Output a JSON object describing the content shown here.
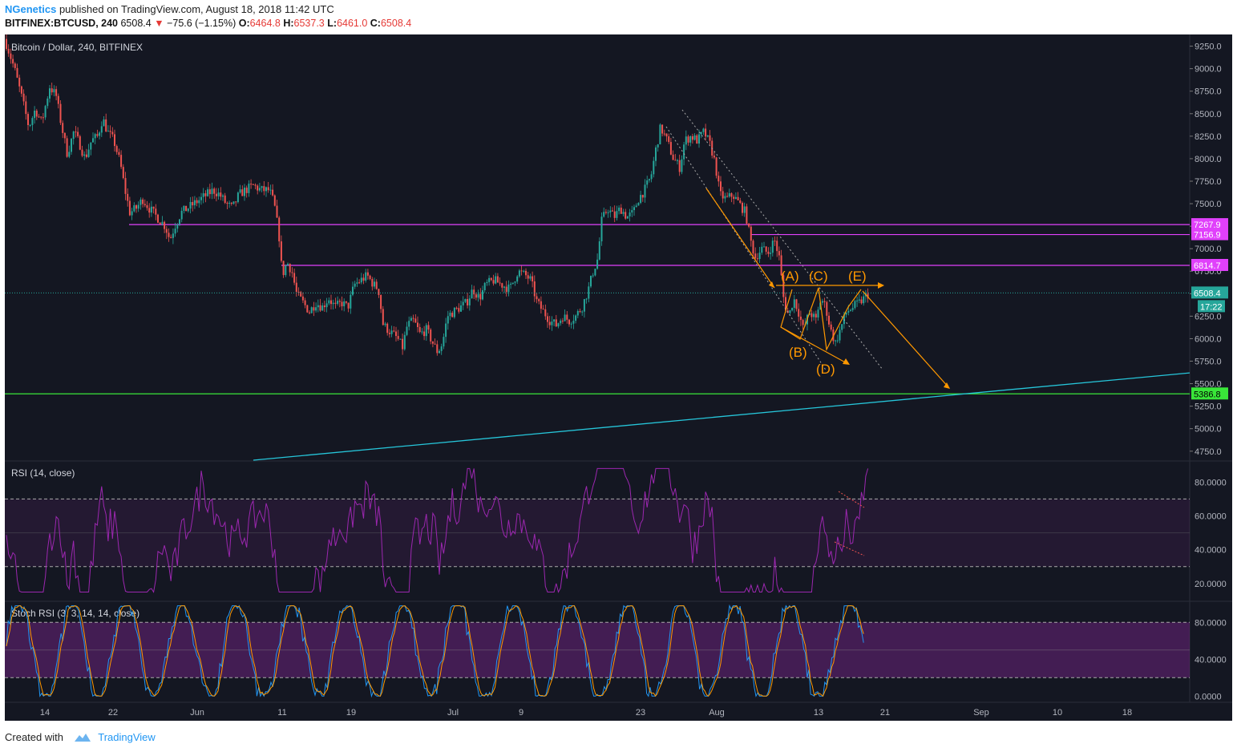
{
  "header": {
    "author": "NGenetics",
    "published_text": "published on TradingView.com, August 18, 2018 11:42 UTC",
    "symbol": "BITFINEX:BTCUSD, 240",
    "last": "6508.4",
    "change": "−75.6 (−1.15%)",
    "open_label": "O:",
    "open": "6464.8",
    "high_label": "H:",
    "high": "6537.3",
    "low_label": "L:",
    "low": "6461.0",
    "close_label": "C:",
    "close": "6508.4"
  },
  "footer": {
    "created_label": "Created with",
    "brand": "TradingView"
  },
  "colors": {
    "up": "#26a69a",
    "down": "#ef5350",
    "magenta": "#e040fb",
    "green": "#39e639",
    "cyan": "#26c6da",
    "orange": "#ff9800",
    "rsi": "#9c27b0"
  },
  "chart_data": [
    {
      "type": "candlestick",
      "title": "Bitcoin / Dollar, 240, BITFINEX",
      "y_ticks": [
        "9250.0",
        "9000.0",
        "8750.0",
        "8500.0",
        "8250.0",
        "8000.0",
        "7750.0",
        "7500.0",
        "7250.0",
        "7000.0",
        "6750.0",
        "6500.0",
        "6250.0",
        "6000.0",
        "5750.0",
        "5500.0",
        "5250.0",
        "5000.0",
        "4750.0"
      ],
      "ylim": [
        4650,
        9380
      ],
      "x_ticks": [
        "14",
        "22",
        "Jun",
        "11",
        "19",
        "Jul",
        "9",
        "23",
        "Aug",
        "13",
        "21",
        "Sep",
        "10",
        "18"
      ],
      "price_path": [
        [
          0,
          9330
        ],
        [
          12,
          9000
        ],
        [
          22,
          8650
        ],
        [
          30,
          8350
        ],
        [
          38,
          8550
        ],
        [
          46,
          8400
        ],
        [
          56,
          8800
        ],
        [
          64,
          8700
        ],
        [
          70,
          8400
        ],
        [
          78,
          8050
        ],
        [
          86,
          8300
        ],
        [
          94,
          8150
        ],
        [
          100,
          8000
        ],
        [
          108,
          8200
        ],
        [
          116,
          8250
        ],
        [
          122,
          8450
        ],
        [
          128,
          8300
        ],
        [
          136,
          8200
        ],
        [
          144,
          7950
        ],
        [
          150,
          7650
        ],
        [
          156,
          7400
        ],
        [
          164,
          7450
        ],
        [
          172,
          7550
        ],
        [
          180,
          7450
        ],
        [
          190,
          7350
        ],
        [
          200,
          7250
        ],
        [
          206,
          7100
        ],
        [
          212,
          7250
        ],
        [
          220,
          7400
        ],
        [
          228,
          7450
        ],
        [
          236,
          7500
        ],
        [
          244,
          7550
        ],
        [
          252,
          7600
        ],
        [
          260,
          7650
        ],
        [
          268,
          7600
        ],
        [
          276,
          7500
        ],
        [
          284,
          7450
        ],
        [
          292,
          7600
        ],
        [
          300,
          7650
        ],
        [
          310,
          7700
        ],
        [
          320,
          7650
        ],
        [
          330,
          7650
        ],
        [
          336,
          7500
        ],
        [
          342,
          7150
        ],
        [
          346,
          6700
        ],
        [
          352,
          6850
        ],
        [
          358,
          6750
        ],
        [
          364,
          6500
        ],
        [
          372,
          6400
        ],
        [
          380,
          6300
        ],
        [
          388,
          6400
        ],
        [
          396,
          6350
        ],
        [
          404,
          6450
        ],
        [
          412,
          6350
        ],
        [
          420,
          6400
        ],
        [
          428,
          6350
        ],
        [
          436,
          6600
        ],
        [
          444,
          6650
        ],
        [
          452,
          6700
        ],
        [
          460,
          6600
        ],
        [
          466,
          6550
        ],
        [
          472,
          6150
        ],
        [
          478,
          6100
        ],
        [
          484,
          6050
        ],
        [
          490,
          6000
        ],
        [
          496,
          5900
        ],
        [
          502,
          6150
        ],
        [
          510,
          6200
        ],
        [
          518,
          6050
        ],
        [
          526,
          6100
        ],
        [
          534,
          5950
        ],
        [
          540,
          5850
        ],
        [
          546,
          5950
        ],
        [
          552,
          6250
        ],
        [
          560,
          6300
        ],
        [
          568,
          6350
        ],
        [
          576,
          6400
        ],
        [
          584,
          6550
        ],
        [
          592,
          6450
        ],
        [
          600,
          6600
        ],
        [
          610,
          6650
        ],
        [
          620,
          6600
        ],
        [
          630,
          6550
        ],
        [
          640,
          6750
        ],
        [
          650,
          6700
        ],
        [
          656,
          6650
        ],
        [
          664,
          6400
        ],
        [
          672,
          6300
        ],
        [
          680,
          6200
        ],
        [
          688,
          6150
        ],
        [
          696,
          6250
        ],
        [
          704,
          6200
        ],
        [
          712,
          6250
        ],
        [
          720,
          6350
        ],
        [
          728,
          6550
        ],
        [
          734,
          6750
        ],
        [
          740,
          6900
        ],
        [
          744,
          7300
        ],
        [
          752,
          7450
        ],
        [
          760,
          7350
        ],
        [
          768,
          7450
        ],
        [
          776,
          7350
        ],
        [
          784,
          7400
        ],
        [
          790,
          7550
        ],
        [
          798,
          7650
        ],
        [
          806,
          7800
        ],
        [
          812,
          8100
        ],
        [
          818,
          8350
        ],
        [
          826,
          8200
        ],
        [
          834,
          8000
        ],
        [
          842,
          7900
        ],
        [
          848,
          8200
        ],
        [
          856,
          8250
        ],
        [
          864,
          8200
        ],
        [
          872,
          8300
        ],
        [
          880,
          8150
        ],
        [
          886,
          7950
        ],
        [
          892,
          7600
        ],
        [
          900,
          7550
        ],
        [
          908,
          7600
        ],
        [
          916,
          7500
        ],
        [
          924,
          7400
        ],
        [
          930,
          7100
        ],
        [
          936,
          6900
        ],
        [
          944,
          7000
        ],
        [
          952,
          6950
        ],
        [
          960,
          7100
        ],
        [
          966,
          6900
        ],
        [
          972,
          6400
        ],
        [
          978,
          6250
        ],
        [
          984,
          6450
        ],
        [
          990,
          6300
        ],
        [
          996,
          6100
        ],
        [
          1004,
          6300
        ],
        [
          1012,
          6200
        ],
        [
          1018,
          6450
        ],
        [
          1024,
          6350
        ],
        [
          1030,
          6100
        ],
        [
          1036,
          5950
        ],
        [
          1042,
          6100
        ],
        [
          1050,
          6300
        ],
        [
          1058,
          6350
        ],
        [
          1066,
          6400
        ],
        [
          1072,
          6450
        ],
        [
          1078,
          6508
        ]
      ],
      "horizontal_levels": [
        {
          "value": 7267.9,
          "label": "7267.9",
          "color": "#e040fb"
        },
        {
          "value": 7156.9,
          "label": "7156.9",
          "color": "#e040fb"
        },
        {
          "value": 6814.7,
          "label": "6814.7",
          "color": "#e040fb"
        },
        {
          "value": 5386.8,
          "label": "5386.8",
          "color": "#39e639"
        }
      ],
      "last_price_label": "6508.4",
      "countdown_label": "17:22",
      "wave_labels": [
        "(A)",
        "(B)",
        "(C)",
        "(D)",
        "(E)"
      ]
    },
    {
      "type": "line",
      "title": "RSI (14, close)",
      "y_ticks": [
        "80.0000",
        "60.0000",
        "40.0000",
        "20.0000"
      ],
      "ylim": [
        10,
        92
      ],
      "bands": [
        30,
        70
      ],
      "mid": 50
    },
    {
      "type": "line",
      "title": "Stoch RSI (3, 3, 14, 14, close)",
      "y_ticks": [
        "80.0000",
        "40.0000",
        "0.0000"
      ],
      "ylim": [
        -5,
        102
      ],
      "bands": [
        20,
        80
      ],
      "mid": 50,
      "series": [
        {
          "color": "#2196f3"
        },
        {
          "color": "#ff9800"
        }
      ]
    }
  ]
}
